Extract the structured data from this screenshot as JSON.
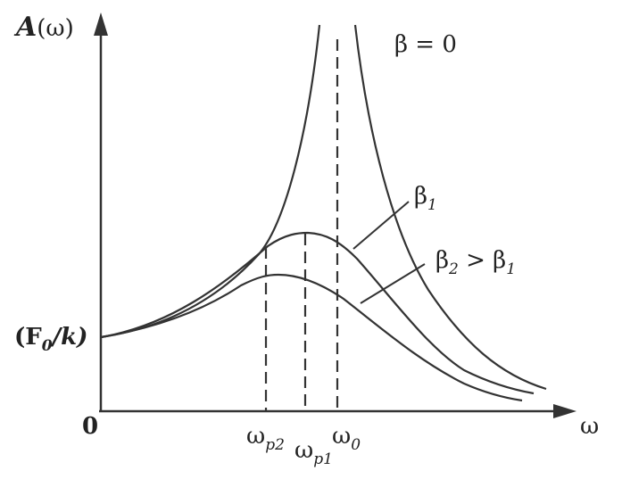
{
  "y_axis_label": [
    {
      "t": "A"
    },
    {
      "t": "(ω)"
    }
  ],
  "x_axis_label": [
    {
      "t": "ω"
    }
  ],
  "origin_label": [
    {
      "t": "0"
    }
  ],
  "intercept_label": [
    {
      "t": "(F"
    },
    {
      "s": "0"
    },
    {
      "t": "/k)"
    }
  ],
  "frequency_markers": [
    [
      {
        "t": "ω"
      },
      {
        "s": "p2"
      }
    ],
    [
      {
        "t": "ω"
      },
      {
        "s": "p1"
      }
    ],
    [
      {
        "t": "ω"
      },
      {
        "s": "0"
      }
    ]
  ],
  "curve_labels": [
    [
      {
        "t": "β = 0"
      }
    ],
    [
      {
        "t": "β"
      },
      {
        "s": "1"
      }
    ],
    [
      {
        "t": "β"
      },
      {
        "s": "2"
      },
      {
        "t": " > β"
      },
      {
        "s": "1"
      }
    ]
  ]
}
